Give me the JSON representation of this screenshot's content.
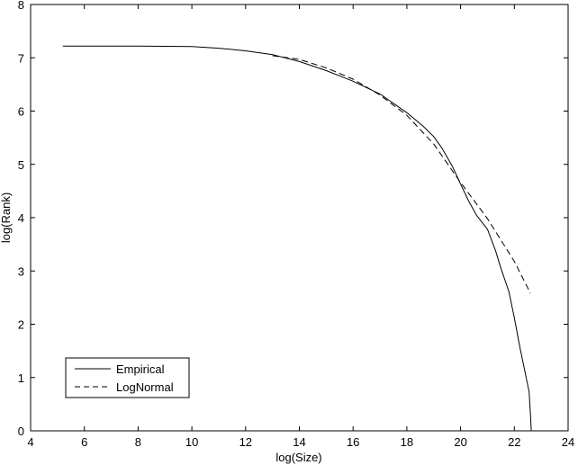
{
  "chart_data": {
    "type": "line",
    "xlabel": "log(Size)",
    "ylabel": "log(Rank)",
    "xlim": [
      4,
      24
    ],
    "ylim": [
      0,
      8
    ],
    "xticks": [
      4,
      6,
      8,
      10,
      12,
      14,
      16,
      18,
      20,
      22,
      24
    ],
    "yticks": [
      0,
      1,
      2,
      3,
      4,
      5,
      6,
      7,
      8
    ],
    "grid": false,
    "legend_position": "bottom-left",
    "series": [
      {
        "name": "Empirical",
        "style": "solid",
        "points": [
          [
            5.2,
            7.22
          ],
          [
            8,
            7.22
          ],
          [
            10,
            7.21
          ],
          [
            11,
            7.18
          ],
          [
            12,
            7.13
          ],
          [
            13,
            7.06
          ],
          [
            14,
            6.93
          ],
          [
            15,
            6.76
          ],
          [
            16,
            6.56
          ],
          [
            17,
            6.32
          ],
          [
            18,
            5.97
          ],
          [
            18.6,
            5.72
          ],
          [
            19,
            5.52
          ],
          [
            19.3,
            5.31
          ],
          [
            19.7,
            4.96
          ],
          [
            20,
            4.63
          ],
          [
            20.3,
            4.31
          ],
          [
            20.6,
            4.04
          ],
          [
            21,
            3.78
          ],
          [
            21.3,
            3.38
          ],
          [
            21.5,
            3.05
          ],
          [
            21.8,
            2.61
          ],
          [
            22,
            2.12
          ],
          [
            22.2,
            1.58
          ],
          [
            22.4,
            1.1
          ],
          [
            22.55,
            0.73
          ],
          [
            22.6,
            0.3
          ],
          [
            22.63,
            0.0
          ]
        ]
      },
      {
        "name": "LogNormal",
        "style": "dashed",
        "points": [
          [
            13,
            7.04
          ],
          [
            14,
            6.97
          ],
          [
            15,
            6.81
          ],
          [
            16,
            6.6
          ],
          [
            17,
            6.3
          ],
          [
            18,
            5.92
          ],
          [
            19,
            5.38
          ],
          [
            20,
            4.66
          ],
          [
            21,
            3.98
          ],
          [
            22,
            3.18
          ],
          [
            22.6,
            2.58
          ]
        ]
      }
    ]
  }
}
